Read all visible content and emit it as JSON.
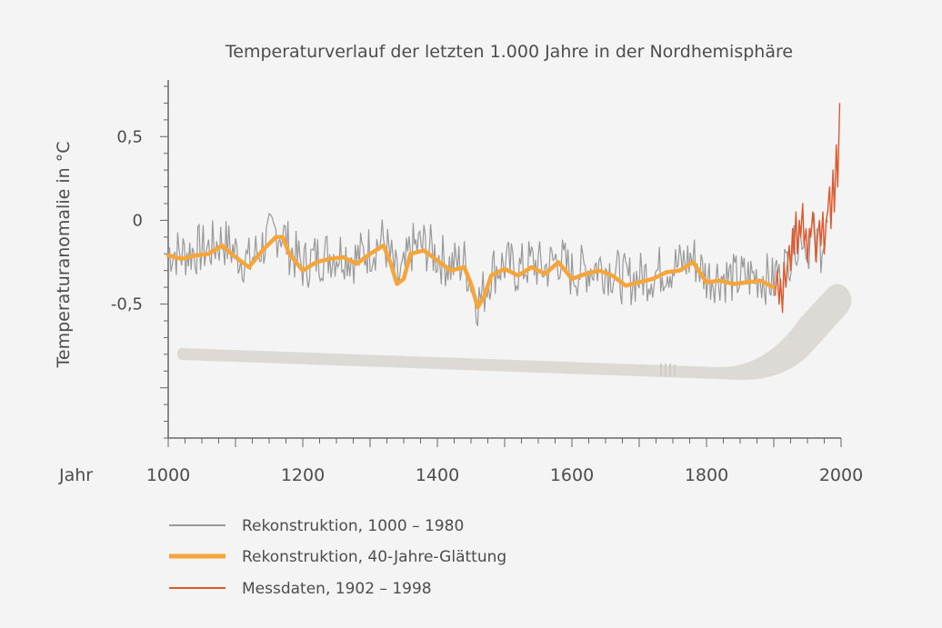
{
  "chart_data": {
    "type": "line",
    "title": "Temperaturverlauf der letzten 1.000 Jahre in der Nordhemisphäre",
    "ylabel": "Temperaturanomalie in °C",
    "xlabel": "Jahr",
    "xlim": [
      1000,
      2000
    ],
    "ylim": [
      -1.3,
      0.8
    ],
    "xticks": [
      1000,
      1200,
      1400,
      1600,
      1800,
      2000
    ],
    "xtick_labels": [
      "1000",
      "1200",
      "1400",
      "1600",
      "1800",
      "2000"
    ],
    "yticks": [
      0.5,
      0,
      -0.5
    ],
    "ytick_labels": [
      "0,5",
      "0",
      "-0,5"
    ],
    "grid": false,
    "legend_position": "bottom-left",
    "legend": [
      {
        "label": "Rekonstruktion, 1000 – 1980",
        "color": "#999999"
      },
      {
        "label": "Rekonstruktion, 40-Jahre-Glättung",
        "color": "#f5a53a"
      },
      {
        "label": "Messdaten, 1902 – 1998",
        "color": "#e2572a"
      }
    ],
    "series": [
      {
        "name": "Rekonstruktion, 40-Jahre-Glättung",
        "color": "#f5a53a",
        "x": [
          1000,
          1020,
          1040,
          1060,
          1080,
          1100,
          1120,
          1140,
          1160,
          1170,
          1180,
          1200,
          1220,
          1240,
          1260,
          1280,
          1300,
          1320,
          1330,
          1340,
          1350,
          1360,
          1380,
          1400,
          1420,
          1440,
          1450,
          1460,
          1470,
          1480,
          1500,
          1520,
          1540,
          1560,
          1580,
          1600,
          1620,
          1640,
          1660,
          1680,
          1700,
          1720,
          1740,
          1760,
          1780,
          1800,
          1820,
          1840,
          1860,
          1880,
          1900
        ],
        "values": [
          -0.21,
          -0.23,
          -0.21,
          -0.2,
          -0.15,
          -0.22,
          -0.28,
          -0.18,
          -0.1,
          -0.1,
          -0.2,
          -0.3,
          -0.25,
          -0.23,
          -0.22,
          -0.26,
          -0.2,
          -0.15,
          -0.25,
          -0.38,
          -0.35,
          -0.2,
          -0.18,
          -0.24,
          -0.3,
          -0.28,
          -0.38,
          -0.52,
          -0.45,
          -0.33,
          -0.29,
          -0.33,
          -0.28,
          -0.32,
          -0.25,
          -0.35,
          -0.32,
          -0.3,
          -0.33,
          -0.39,
          -0.37,
          -0.35,
          -0.31,
          -0.3,
          -0.25,
          -0.37,
          -0.36,
          -0.38,
          -0.37,
          -0.36,
          -0.4
        ]
      },
      {
        "name": "Messdaten, 1902 – 1998",
        "color": "#e2572a",
        "x": [
          1902,
          1905,
          1908,
          1910,
          1913,
          1915,
          1918,
          1920,
          1923,
          1925,
          1928,
          1930,
          1933,
          1935,
          1938,
          1940,
          1943,
          1945,
          1948,
          1950,
          1953,
          1955,
          1958,
          1960,
          1963,
          1965,
          1968,
          1970,
          1973,
          1975,
          1978,
          1980,
          1983,
          1985,
          1988,
          1990,
          1993,
          1995,
          1998
        ],
        "values": [
          -0.45,
          -0.3,
          -0.5,
          -0.35,
          -0.55,
          -0.25,
          -0.4,
          -0.28,
          -0.15,
          -0.3,
          -0.05,
          -0.2,
          0.05,
          -0.2,
          0.0,
          -0.1,
          0.1,
          -0.15,
          -0.05,
          -0.25,
          -0.05,
          -0.1,
          0.05,
          -0.05,
          -0.25,
          -0.1,
          0.0,
          -0.15,
          0.05,
          -0.2,
          0.0,
          0.05,
          0.2,
          -0.05,
          0.3,
          0.05,
          0.45,
          0.2,
          0.7
        ]
      },
      {
        "name": "Rekonstruktion, 1000 – 1980",
        "color": "#999999",
        "x": [
          1000,
          1020,
          1040,
          1060,
          1080,
          1100,
          1120,
          1140,
          1160,
          1170,
          1180,
          1200,
          1220,
          1240,
          1260,
          1280,
          1300,
          1320,
          1330,
          1340,
          1350,
          1360,
          1380,
          1400,
          1420,
          1440,
          1450,
          1460,
          1470,
          1480,
          1500,
          1520,
          1540,
          1560,
          1580,
          1600,
          1620,
          1640,
          1660,
          1680,
          1700,
          1720,
          1740,
          1760,
          1780,
          1800,
          1820,
          1840,
          1860,
          1880,
          1900
        ],
        "values": [
          -0.21,
          -0.23,
          -0.21,
          -0.2,
          -0.15,
          -0.22,
          -0.28,
          -0.18,
          -0.1,
          -0.1,
          -0.2,
          -0.3,
          -0.25,
          -0.23,
          -0.22,
          -0.26,
          -0.2,
          -0.15,
          -0.25,
          -0.38,
          -0.35,
          -0.2,
          -0.18,
          -0.24,
          -0.3,
          -0.28,
          -0.38,
          -0.52,
          -0.45,
          -0.33,
          -0.29,
          -0.33,
          -0.28,
          -0.32,
          -0.25,
          -0.35,
          -0.32,
          -0.3,
          -0.33,
          -0.39,
          -0.37,
          -0.35,
          -0.31,
          -0.3,
          -0.25,
          -0.37,
          -0.36,
          -0.38,
          -0.37,
          -0.36,
          -0.4
        ],
        "note": "noisy annual values around the smoothed curve"
      }
    ]
  }
}
